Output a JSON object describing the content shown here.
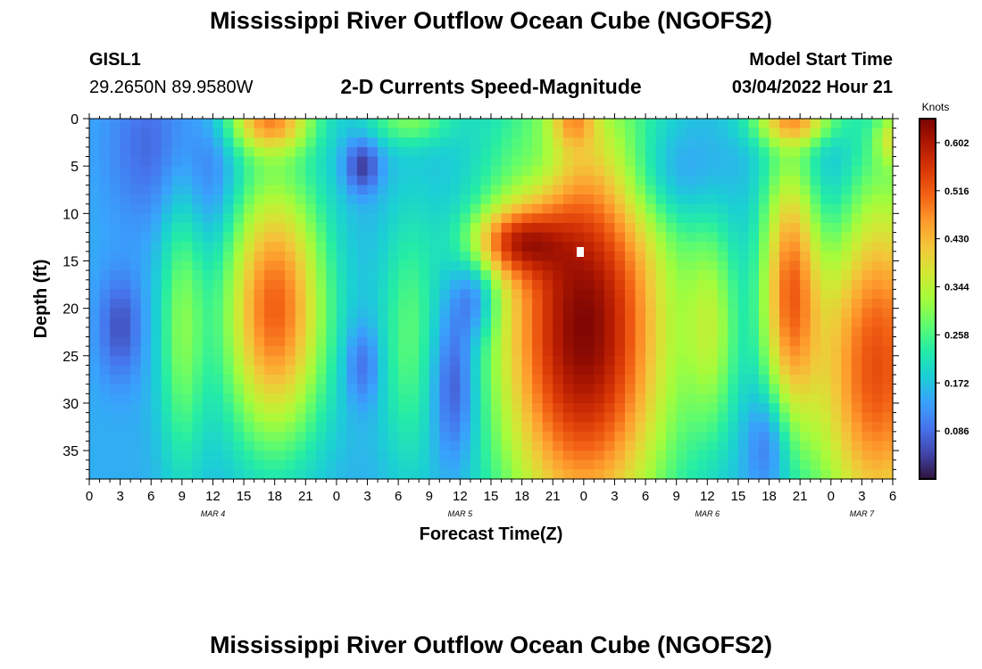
{
  "header": {
    "title": "Mississippi River Outflow Ocean Cube (NGOFS2)",
    "station": "GISL1",
    "coords": "29.2650N  89.9580W",
    "product": "2-D Currents Speed-Magnitude",
    "model_start_label": "Model Start Time",
    "model_start_value": "03/04/2022 Hour 21"
  },
  "footer": {
    "title": "Mississippi River Outflow Ocean Cube (NGOFS2)"
  },
  "chart_data": {
    "type": "heatmap",
    "xlabel": "Forecast Time(Z)",
    "ylabel": "Depth (ft)",
    "x_ticks": [
      "0",
      "3",
      "6",
      "9",
      "12",
      "15",
      "18",
      "21",
      "0",
      "3",
      "6",
      "9",
      "12",
      "15",
      "18",
      "21",
      "0",
      "3",
      "6",
      "9",
      "12",
      "15",
      "18",
      "21",
      "0",
      "3",
      "6"
    ],
    "x_range_hours": [
      0,
      78
    ],
    "date_labels": [
      {
        "label": "MAR 4",
        "hour": 12
      },
      {
        "label": "MAR 5",
        "hour": 36
      },
      {
        "label": "MAR 6",
        "hour": 60
      },
      {
        "label": "MAR 7",
        "hour": 75
      }
    ],
    "y_ticks": [
      0,
      5,
      10,
      15,
      20,
      25,
      30,
      35
    ],
    "ylim": [
      0,
      38
    ],
    "y_inverted": true,
    "colorbar": {
      "unit": "Knots",
      "ticks": [
        "0.602",
        "0.516",
        "0.430",
        "0.344",
        "0.258",
        "0.172",
        "0.086"
      ],
      "range": [
        0,
        0.645
      ],
      "colors": [
        "#30123b",
        "#4145ab",
        "#4675ed",
        "#39a2fc",
        "#1bcfd4",
        "#24eca6",
        "#61fc6c",
        "#a4fc3b",
        "#d1e834",
        "#f3c63a",
        "#fe9b2d",
        "#f36315",
        "#d93806",
        "#b11901",
        "#7a0403"
      ]
    },
    "field": {
      "base": 0.15,
      "features": [
        {
          "t": 48,
          "d": 22,
          "st": 6,
          "sd": 16,
          "a": 0.49
        },
        {
          "t": 41,
          "d": 13,
          "st": 3,
          "sd": 2.5,
          "a": 0.22
        },
        {
          "t": 18,
          "d": 20,
          "st": 3.5,
          "sd": 10,
          "a": 0.36
        },
        {
          "t": 17.5,
          "d": 0,
          "st": 3,
          "sd": 2.5,
          "a": 0.28
        },
        {
          "t": 9,
          "d": 22,
          "st": 1.6,
          "sd": 11,
          "a": 0.14
        },
        {
          "t": 6,
          "d": 3,
          "st": 3,
          "sd": 6,
          "a": -0.07
        },
        {
          "t": 3,
          "d": 22,
          "st": 1.5,
          "sd": 4,
          "a": -0.09
        },
        {
          "t": 12,
          "d": 6,
          "st": 2,
          "sd": 6,
          "a": -0.06
        },
        {
          "t": 26.5,
          "d": 5,
          "st": 1.2,
          "sd": 2,
          "a": -0.12
        },
        {
          "t": 26.5,
          "d": 26,
          "st": 1.2,
          "sd": 3,
          "a": -0.08
        },
        {
          "t": 31,
          "d": 23,
          "st": 2,
          "sd": 10,
          "a": 0.11
        },
        {
          "t": 31,
          "d": 0,
          "st": 3,
          "sd": 2,
          "a": 0.13
        },
        {
          "t": 35.5,
          "d": 28,
          "st": 1.6,
          "sd": 6,
          "a": -0.13
        },
        {
          "t": 37.5,
          "d": 19,
          "st": 1.5,
          "sd": 3,
          "a": -0.11
        },
        {
          "t": 44,
          "d": 5,
          "st": 2,
          "sd": 3,
          "a": -0.05
        },
        {
          "t": 47,
          "d": 0,
          "st": 1.5,
          "sd": 2,
          "a": 0.14
        },
        {
          "t": 56,
          "d": 6,
          "st": 3.5,
          "sd": 4,
          "a": -0.09
        },
        {
          "t": 60.5,
          "d": 22,
          "st": 1.8,
          "sd": 8,
          "a": 0.14
        },
        {
          "t": 68,
          "d": 18,
          "st": 2,
          "sd": 10,
          "a": 0.31
        },
        {
          "t": 68.5,
          "d": 0,
          "st": 3,
          "sd": 2,
          "a": 0.25
        },
        {
          "t": 66,
          "d": 34,
          "st": 1.5,
          "sd": 4,
          "a": -0.1
        },
        {
          "t": 72,
          "d": 6,
          "st": 2,
          "sd": 8,
          "a": -0.06
        },
        {
          "t": 76.5,
          "d": 26,
          "st": 4.5,
          "sd": 14,
          "a": 0.38
        },
        {
          "t": 78,
          "d": 2,
          "st": 1.2,
          "sd": 2,
          "a": 0.14
        }
      ]
    }
  }
}
